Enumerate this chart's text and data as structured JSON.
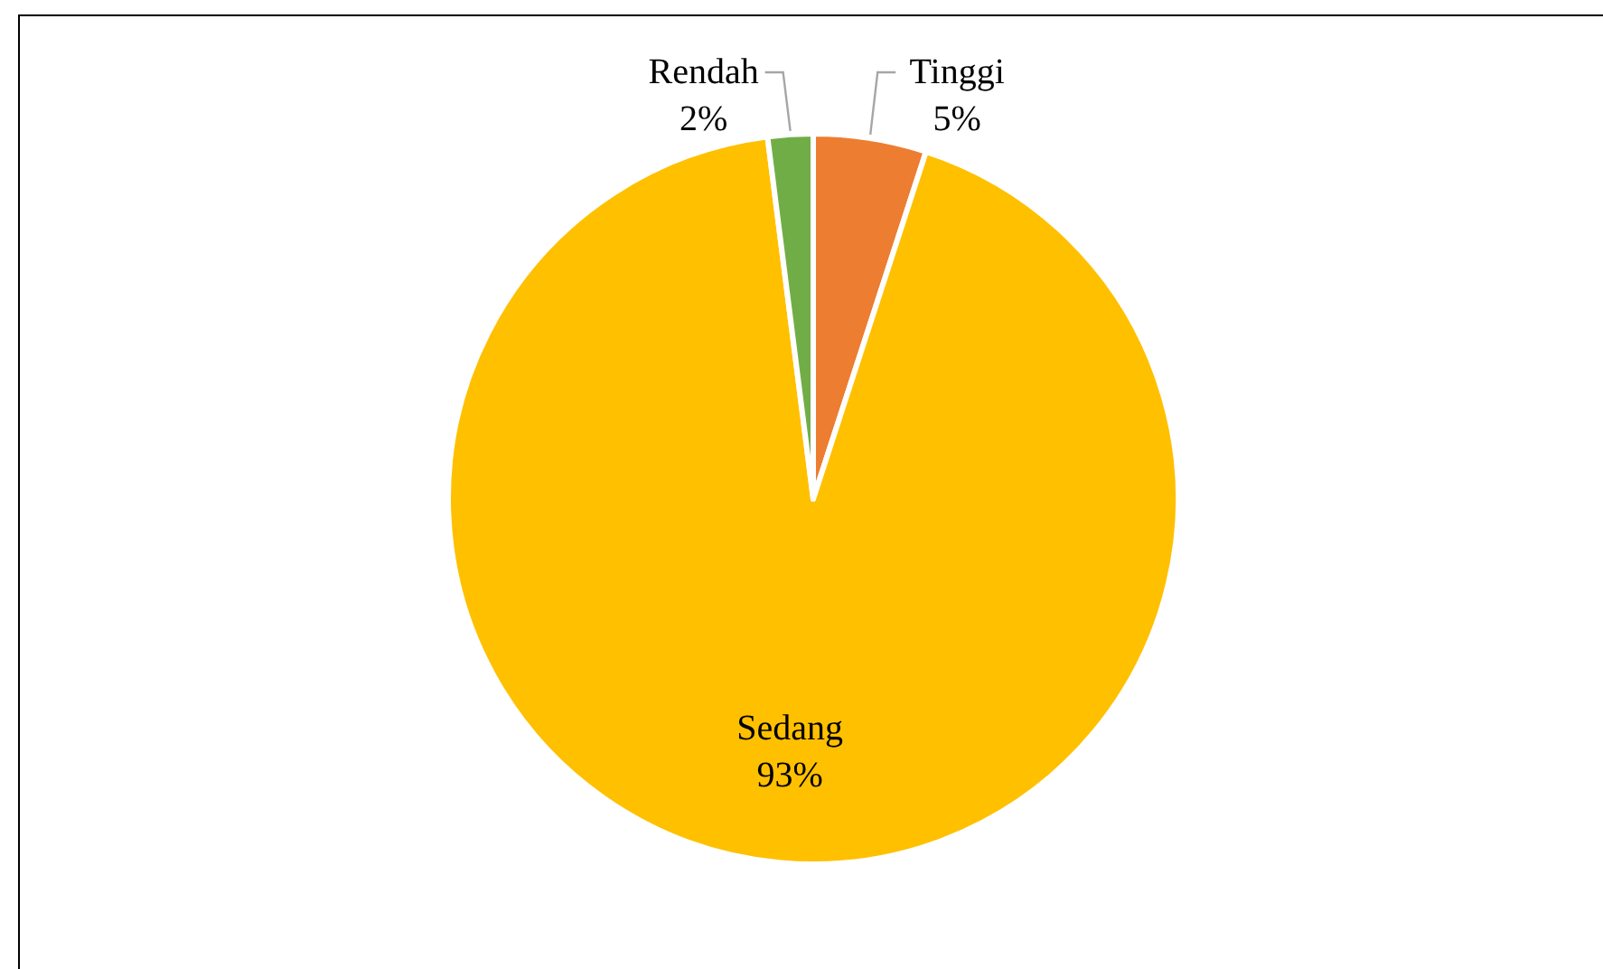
{
  "chart_data": {
    "type": "pie",
    "categories": [
      "Tinggi",
      "Sedang",
      "Rendah"
    ],
    "values": [
      5,
      93,
      2
    ],
    "colors": [
      "#ed7d31",
      "#ffc000",
      "#70ad47"
    ],
    "value_labels": [
      "5%",
      "93%",
      "2%"
    ]
  }
}
